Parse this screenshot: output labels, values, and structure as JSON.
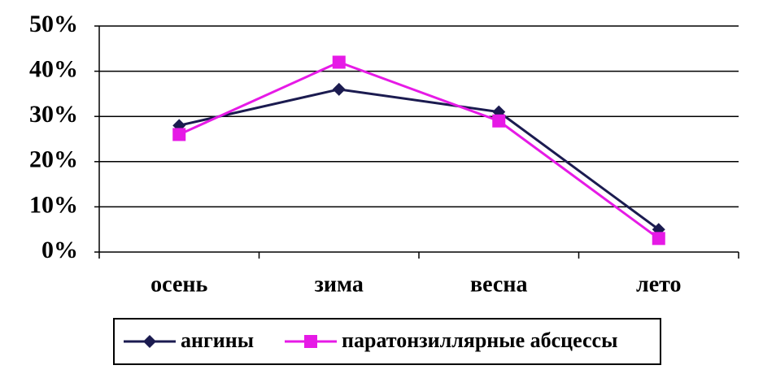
{
  "chart_data": {
    "type": "line",
    "categories": [
      "осень",
      "зима",
      "весна",
      "лето"
    ],
    "series": [
      {
        "name": "ангины",
        "color": "#1b1b50",
        "marker": "diamond",
        "values": [
          28,
          36,
          31,
          5
        ]
      },
      {
        "name": "паратонзиллярные абсцессы",
        "color": "#e61ae6",
        "marker": "square",
        "values": [
          26,
          42,
          29,
          3
        ]
      }
    ],
    "ylim": [
      0,
      50
    ],
    "yticks": [
      {
        "value": 0,
        "label": "0%"
      },
      {
        "value": 10,
        "label": "10%"
      },
      {
        "value": 20,
        "label": "20%"
      },
      {
        "value": 30,
        "label": "30%"
      },
      {
        "value": 40,
        "label": "40%"
      },
      {
        "value": 50,
        "label": "50%"
      }
    ],
    "grid": true,
    "legend": "bottom"
  }
}
